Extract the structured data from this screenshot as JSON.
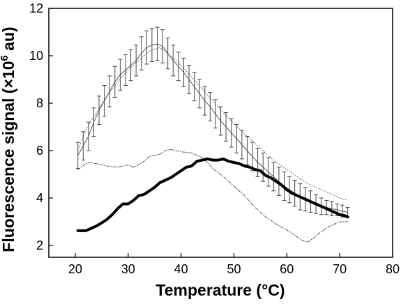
{
  "chart_data": {
    "type": "line",
    "xlabel": "Temperature (°C)",
    "ylabel_main": "Fluorescence signal (×10",
    "ylabel_sup": "6",
    "ylabel_end": " au)",
    "xlim": [
      15,
      80
    ],
    "ylim": [
      1.5,
      12
    ],
    "xticks": [
      20,
      30,
      40,
      50,
      60,
      70,
      80
    ],
    "yticks": [
      2,
      4,
      6,
      8,
      10,
      12
    ],
    "grid": false,
    "series": [
      {
        "style": "thin-with-error-bars",
        "x": [
          20.5,
          21.5,
          22.5,
          23.5,
          24.5,
          25.5,
          26.5,
          27.5,
          28.5,
          29.5,
          30.5,
          31.5,
          32.5,
          33.5,
          34.5,
          35.5,
          36.5,
          37.5,
          38.5,
          39.5,
          40.5,
          41.5,
          42.5,
          43.5,
          44.5,
          45.5,
          46.5,
          47.5,
          48.5,
          49.5,
          50.5,
          51.5,
          52.5,
          53.5,
          54.5,
          55.5,
          56.5,
          57.5,
          58.5,
          59.5,
          60.5,
          61.5,
          62.5,
          63.5,
          64.5,
          65.5,
          66.5,
          67.5,
          68.5,
          69.5,
          70.5,
          71.5
        ],
        "y": [
          5.8,
          6.2,
          6.6,
          7.2,
          7.7,
          8.1,
          8.5,
          8.9,
          9.2,
          9.4,
          9.6,
          9.8,
          10.1,
          10.35,
          10.45,
          10.5,
          10.4,
          10.1,
          9.8,
          9.55,
          9.3,
          9.0,
          8.7,
          8.4,
          8.1,
          7.85,
          7.55,
          7.25,
          7.0,
          6.75,
          6.5,
          6.25,
          6.0,
          5.75,
          5.5,
          5.3,
          5.1,
          4.9,
          4.7,
          4.5,
          4.35,
          4.2,
          4.05,
          3.95,
          3.85,
          3.75,
          3.65,
          3.6,
          3.55,
          3.5,
          3.45,
          3.4
        ],
        "err": [
          0.55,
          0.6,
          0.6,
          0.6,
          0.6,
          0.65,
          0.65,
          0.65,
          0.65,
          0.65,
          0.65,
          0.65,
          0.7,
          0.7,
          0.7,
          0.7,
          0.7,
          0.65,
          0.65,
          0.6,
          0.6,
          0.6,
          0.6,
          0.6,
          0.6,
          0.6,
          0.6,
          0.6,
          0.6,
          0.6,
          0.6,
          0.6,
          0.6,
          0.6,
          0.6,
          0.6,
          0.6,
          0.6,
          0.6,
          0.6,
          0.55,
          0.55,
          0.55,
          0.5,
          0.45,
          0.4,
          0.35,
          0.3,
          0.3,
          0.25,
          0.25,
          0.2
        ]
      },
      {
        "style": "dotted-upper",
        "x": [
          20.5,
          22,
          24,
          26,
          28,
          30,
          32,
          34,
          36,
          38,
          40,
          42,
          44,
          46,
          48,
          50,
          52,
          54,
          56,
          58,
          60,
          62,
          64,
          66,
          68,
          70,
          71.5
        ],
        "y": [
          6.0,
          6.9,
          7.6,
          8.3,
          8.9,
          9.4,
          9.8,
          10.2,
          10.35,
          10.0,
          9.6,
          9.1,
          8.6,
          8.1,
          7.6,
          7.15,
          6.7,
          6.3,
          5.9,
          5.5,
          5.2,
          4.9,
          4.6,
          4.4,
          4.2,
          4.0,
          3.9
        ]
      },
      {
        "style": "dash-dot-lower",
        "x": [
          20.5,
          22,
          23,
          24,
          26,
          28,
          30,
          31,
          32,
          33,
          34,
          35,
          36,
          37,
          38,
          40,
          42,
          44,
          45,
          46,
          48,
          50,
          52,
          54,
          56,
          58,
          60,
          62,
          63,
          64,
          65,
          66,
          68,
          70,
          71.5
        ],
        "y": [
          5.2,
          5.45,
          5.5,
          5.45,
          5.35,
          5.3,
          5.4,
          5.3,
          5.4,
          5.55,
          5.75,
          5.8,
          5.85,
          6.0,
          6.05,
          5.95,
          5.9,
          5.7,
          5.5,
          5.25,
          4.9,
          4.5,
          4.1,
          3.6,
          3.2,
          2.9,
          2.65,
          2.35,
          2.2,
          2.15,
          2.3,
          2.5,
          2.8,
          3.0,
          3.0
        ]
      },
      {
        "style": "thick",
        "x": [
          20.5,
          22,
          23,
          24,
          25,
          26,
          27,
          28,
          29,
          30,
          31,
          32,
          33,
          34,
          35,
          36,
          37,
          38,
          39,
          40,
          41,
          42,
          43,
          44,
          45,
          46,
          47,
          48,
          49,
          50,
          51,
          52,
          53,
          54,
          55,
          56,
          57,
          58,
          59,
          60,
          61,
          62,
          63,
          64,
          65,
          66,
          67,
          68,
          69,
          70,
          71,
          71.5
        ],
        "y": [
          2.62,
          2.62,
          2.72,
          2.82,
          2.95,
          3.1,
          3.3,
          3.55,
          3.75,
          3.75,
          3.9,
          4.1,
          4.15,
          4.3,
          4.45,
          4.65,
          4.75,
          4.85,
          5.0,
          5.15,
          5.3,
          5.35,
          5.55,
          5.6,
          5.65,
          5.6,
          5.6,
          5.65,
          5.55,
          5.5,
          5.45,
          5.35,
          5.3,
          5.2,
          5.15,
          4.95,
          4.85,
          4.7,
          4.55,
          4.35,
          4.2,
          4.1,
          4.0,
          3.9,
          3.8,
          3.7,
          3.6,
          3.5,
          3.4,
          3.3,
          3.25,
          3.2
        ]
      }
    ]
  }
}
